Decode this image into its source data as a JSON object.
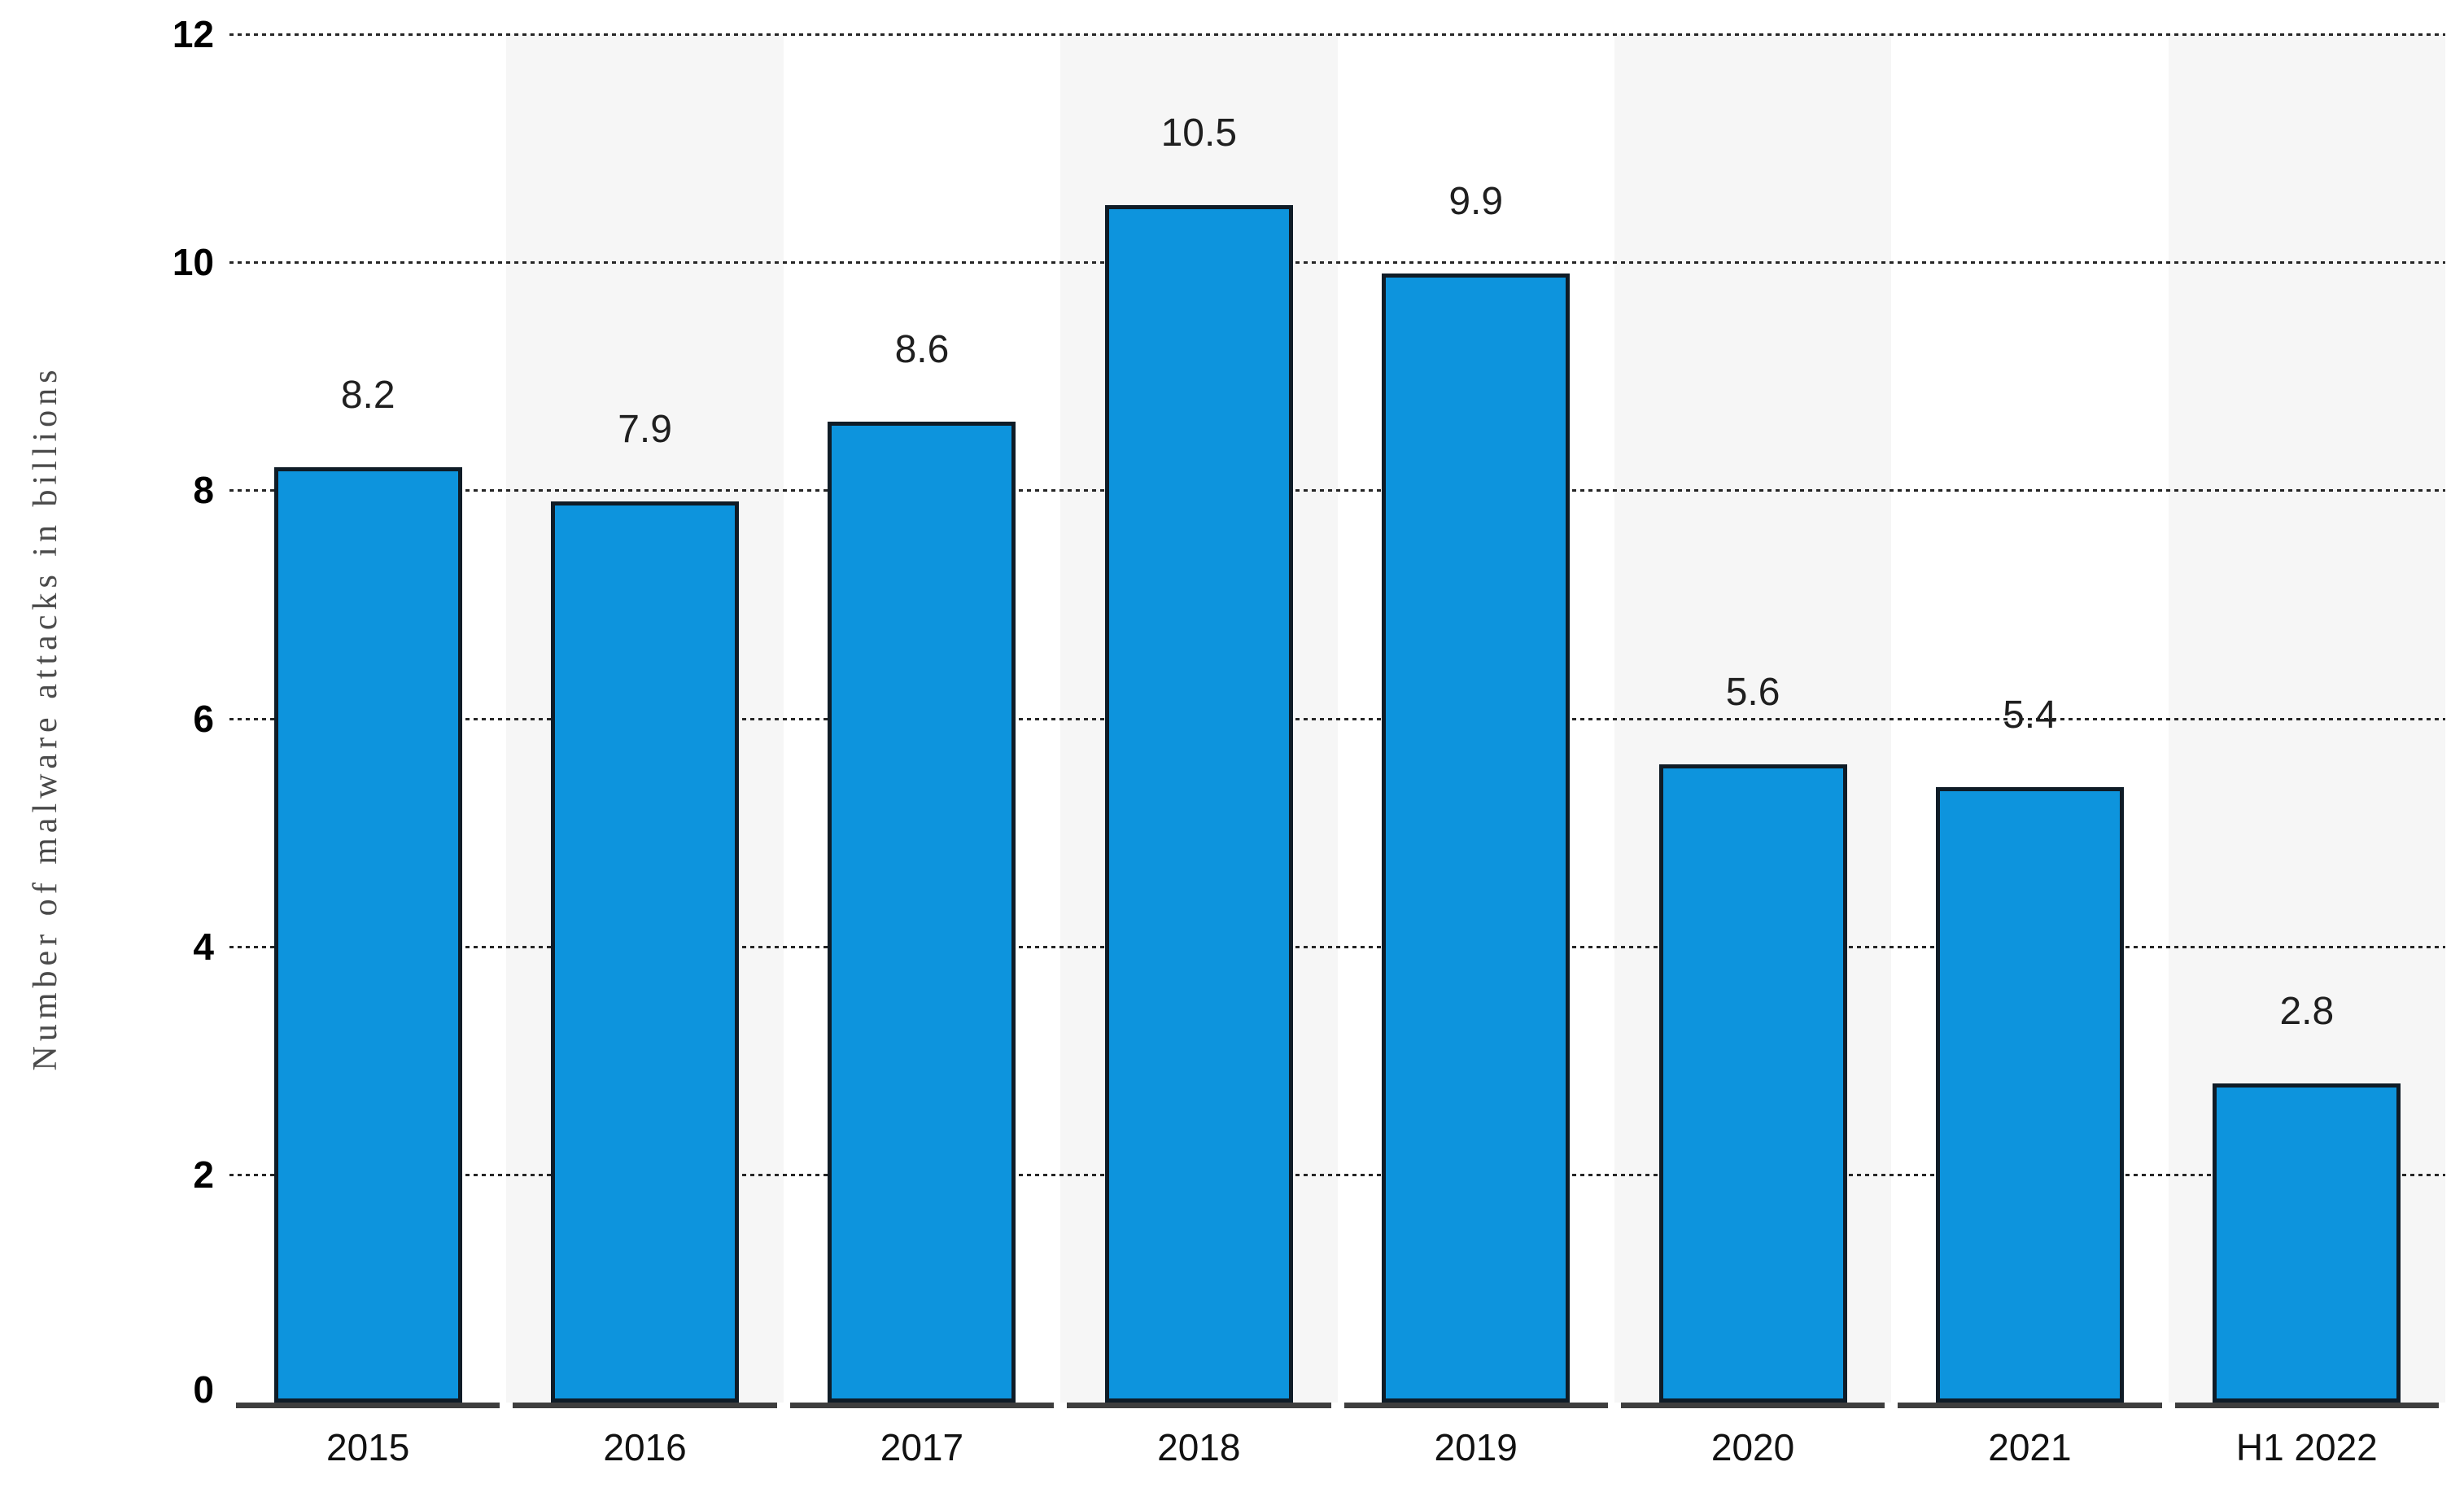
{
  "chart_data": {
    "type": "bar",
    "title": "",
    "categories": [
      "2015",
      "2016",
      "2017",
      "2018",
      "2019",
      "2020",
      "2021",
      "H1 2022"
    ],
    "values": [
      8.2,
      7.9,
      8.6,
      10.5,
      9.9,
      5.6,
      5.4,
      2.8
    ],
    "value_labels": [
      "8.2",
      "7.9",
      "8.6",
      "10.5",
      "9.9",
      "5.6",
      "5.4",
      "2.8"
    ],
    "xlabel": "",
    "ylabel": "Number of malware attacks in billions",
    "ylim": [
      0,
      12
    ],
    "yticks": [
      0,
      2,
      4,
      6,
      8,
      10,
      12
    ],
    "grid": "horizontal dotted lines at each ytick, drawn behind bars",
    "legend_position": "none",
    "layout_hints": {
      "plot_bands": "alternating vertical column bands, white and light gray, starting white at 2015",
      "x_axis": "dark segmented baseline, one segment per category with small gaps",
      "bar_labels": "values shown above each bar"
    },
    "colors": {
      "bar_fill": "#0d94dd",
      "bar_border": "#0f1c27",
      "gridline": "#262626",
      "axis_segment": "#3e3e3e",
      "band_gray": "#f6f6f6",
      "value_label": "#1f1f1f",
      "tick_label": "#000000",
      "ylabel_color": "#4a4a4a",
      "background": "#ffffff"
    }
  }
}
